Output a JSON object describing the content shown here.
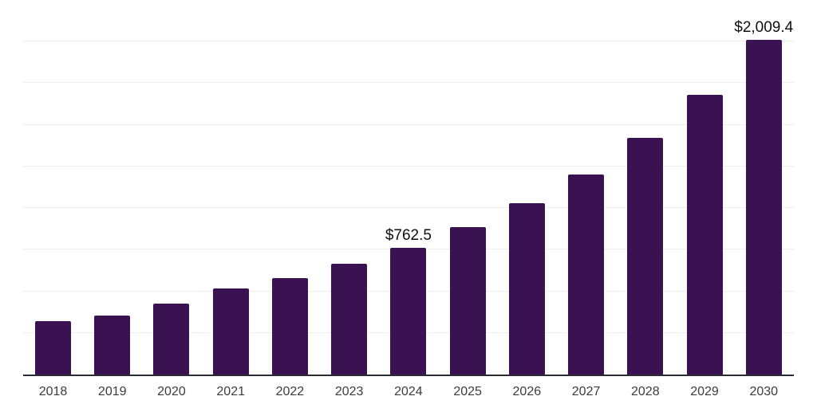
{
  "chart_data": {
    "type": "bar",
    "title": "",
    "xlabel": "",
    "ylabel": "",
    "categories": [
      "2018",
      "2019",
      "2020",
      "2021",
      "2022",
      "2023",
      "2024",
      "2025",
      "2026",
      "2027",
      "2028",
      "2029",
      "2030"
    ],
    "values": [
      320,
      352,
      424,
      519,
      577,
      667,
      762.5,
      888,
      1029,
      1204,
      1420,
      1681,
      2009.4
    ],
    "data_labels": [
      null,
      null,
      null,
      null,
      null,
      null,
      "$762.5",
      null,
      null,
      null,
      null,
      null,
      "$2,009.4"
    ],
    "ylim": [
      0,
      2250
    ],
    "gridline_interval": 250,
    "grid": true,
    "legend": "none",
    "colors": {
      "bar": "#3a1252",
      "gridline": "#efefef",
      "axis_line": "#2b2b33",
      "tick_label": "#3c3c3c",
      "data_label": "#0f0f0f",
      "background": "#ffffff"
    }
  }
}
